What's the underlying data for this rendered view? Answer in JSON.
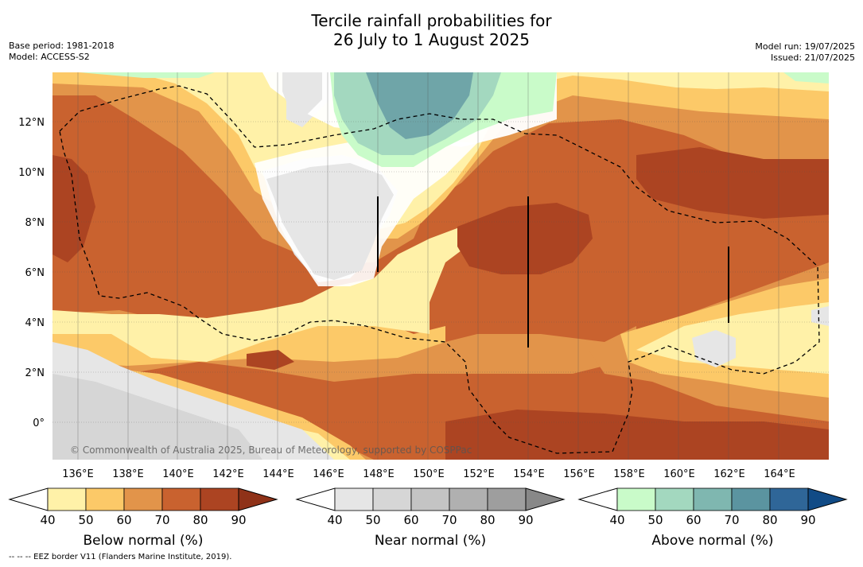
{
  "title": {
    "line1": "Tercile rainfall probabilities for",
    "line2": "26 July to 1 August 2025"
  },
  "meta": {
    "base_period": "Base period: 1981-2018",
    "model": "Model: ACCESS-S2",
    "model_run": "Model run: 19/07/2025",
    "issued": "Issued: 21/07/2025"
  },
  "map": {
    "lon_labels": [
      "136°E",
      "138°E",
      "140°E",
      "142°E",
      "144°E",
      "146°E",
      "148°E",
      "150°E",
      "152°E",
      "154°E",
      "156°E",
      "158°E",
      "160°E",
      "162°E",
      "164°E"
    ],
    "lat_labels": [
      "12°N",
      "10°N",
      "8°N",
      "6°N",
      "4°N",
      "2°N",
      "0°"
    ],
    "copyright": "© Commonwealth of Australia 2025, Bureau of Meteorology, supported by COSPPac"
  },
  "colorbars": [
    {
      "title": "Below normal (%)",
      "ticks": [
        "40",
        "50",
        "60",
        "70",
        "80",
        "90"
      ],
      "colors": [
        "#fff1a8",
        "#fcc968",
        "#e2944a",
        "#c9622f",
        "#ac4422"
      ],
      "extend_color": "#8f3218"
    },
    {
      "title": "Near normal (%)",
      "ticks": [
        "40",
        "50",
        "60",
        "70",
        "80",
        "90"
      ],
      "colors": [
        "#e6e6e6",
        "#d6d6d6",
        "#c4c4c4",
        "#b0b0b0",
        "#9e9e9e"
      ],
      "extend_color": "#888888"
    },
    {
      "title": "Above normal (%)",
      "ticks": [
        "40",
        "50",
        "60",
        "70",
        "80",
        "90"
      ],
      "colors": [
        "#c9fbc9",
        "#a3d8bf",
        "#7fb7b0",
        "#5b94a0",
        "#2f6698"
      ],
      "extend_color": "#114b86"
    }
  ],
  "footer": "--  --  -- EEZ border V11 (Flanders Marine Institute, 2019).",
  "colors": {
    "below": [
      "#fff1a8",
      "#fcc968",
      "#e2944a",
      "#c9622f",
      "#ac4422"
    ],
    "near": [
      "#e6e6e6",
      "#d6d6d6"
    ],
    "above": [
      "#c9fbc9",
      "#a3d8bf",
      "#6fa5a8"
    ]
  }
}
